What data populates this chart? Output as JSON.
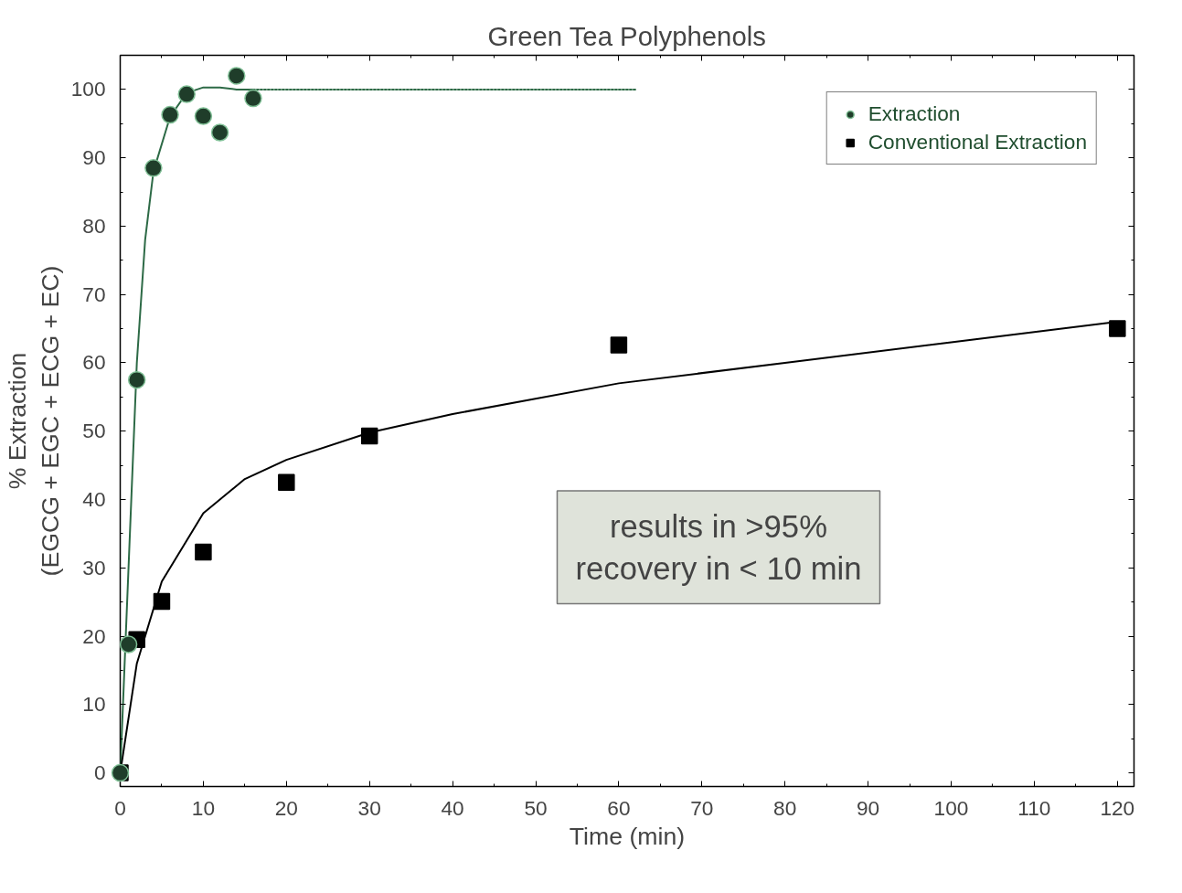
{
  "chart_data": {
    "type": "scatter",
    "title": "Green Tea Polyphenols",
    "xlabel": "Time (min)",
    "ylabel": "% Extraction\n(EGCG + EGC + ECG + EC)",
    "series": [
      {
        "name": "Extraction",
        "marker": "circle",
        "color": "#1f3d2a",
        "x": [
          0,
          1,
          2,
          4,
          6,
          8,
          10,
          12,
          14,
          16
        ],
        "values": [
          0,
          18.8,
          57.5,
          88.5,
          96.3,
          99.3,
          96.1,
          93.7,
          102,
          98.7
        ]
      },
      {
        "name": "Conventional Extraction",
        "marker": "square",
        "color": "#000000",
        "x": [
          0,
          2,
          5,
          10,
          20,
          30,
          60,
          120
        ],
        "values": [
          0,
          19.5,
          25.1,
          32.3,
          42.5,
          49.3,
          62.6,
          65
        ]
      },
      {
        "type": "line",
        "color": "#2d6a46",
        "line_style": "solid",
        "x": [
          0,
          1,
          2,
          3,
          4,
          6,
          8,
          10,
          12,
          14,
          16
        ],
        "values": [
          0,
          30,
          60,
          78,
          88,
          96,
          99.5,
          100.3,
          100.3,
          100,
          100
        ]
      },
      {
        "type": "line",
        "color": "#2d6a46",
        "line_style": "dotted",
        "x": [
          16,
          62
        ],
        "values": [
          100,
          100
        ]
      },
      {
        "type": "line",
        "color": "#000000",
        "line_style": "solid",
        "x": [
          0,
          2,
          5,
          10,
          15,
          20,
          30,
          40,
          60,
          80,
          100,
          120
        ],
        "values": [
          0,
          16,
          28,
          38,
          43,
          45.8,
          49.8,
          52.5,
          57,
          60,
          63,
          66
        ]
      }
    ],
    "xlim": [
      0,
      122
    ],
    "ylim": [
      -2,
      105
    ],
    "xticks": [
      0,
      10,
      20,
      30,
      40,
      50,
      60,
      70,
      80,
      90,
      100,
      110,
      120
    ],
    "yticks": [
      0,
      10,
      20,
      30,
      40,
      50,
      60,
      70,
      80,
      90,
      100
    ],
    "grid": false,
    "legend": "top right",
    "annotations": [
      "results in >95%\nrecovery in < 10 min"
    ]
  }
}
